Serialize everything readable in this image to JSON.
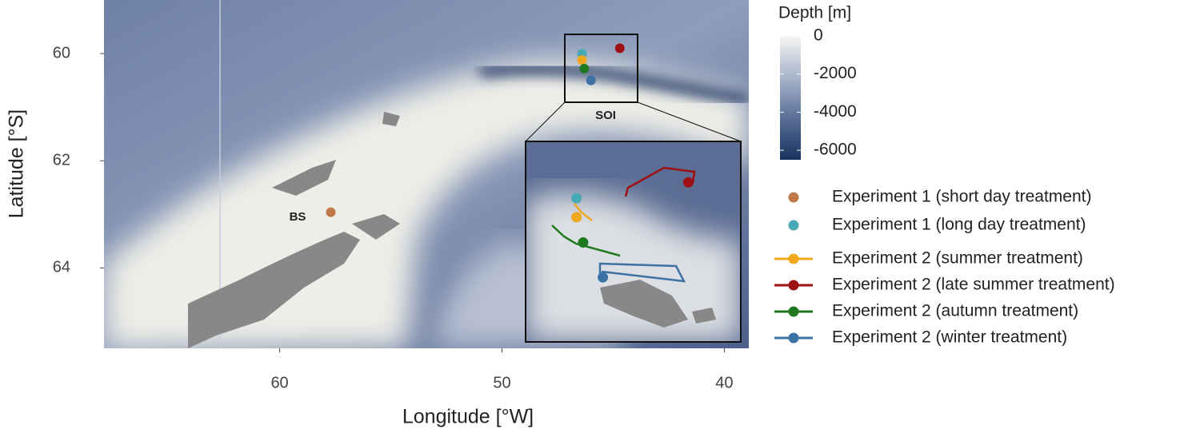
{
  "chart_data": {
    "type": "map",
    "x_label": "Longitude [°W]",
    "y_label": "Latitude [°S]",
    "xlim": [
      67.9,
      38.9
    ],
    "ylim": [
      59,
      65.5
    ],
    "xticks": [
      60,
      50,
      40
    ],
    "yticks": [
      60,
      62,
      64
    ],
    "colorbar": {
      "title": "Depth [m]",
      "lim": [
        -6500,
        0
      ],
      "ticks": [
        0,
        -2000,
        -4000,
        -6000
      ],
      "colors": [
        "#16325c",
        "#5a6f97",
        "#a8b4cb",
        "#f6f6f1"
      ]
    },
    "site_labels": [
      "BS",
      "SOI"
    ],
    "series": [
      {
        "name": "Experiment 1 (short day treatment)",
        "color": "#c0784a",
        "line": false,
        "x": [
          57.7
        ],
        "y": [
          62.96
        ]
      },
      {
        "name": "Experiment 1 (long day treatment)",
        "color": "#46a9b5",
        "line": false,
        "x": [
          46.4
        ],
        "y": [
          60.0
        ]
      },
      {
        "name": "Experiment 2 (summer treatment)",
        "color": "#f0a81c",
        "line": true,
        "x": [
          46.4
        ],
        "y": [
          60.12
        ]
      },
      {
        "name": "Experiment 2 (late summer treatment)",
        "color": "#9c1016",
        "line": true,
        "x": [
          44.7
        ],
        "y": [
          59.9
        ]
      },
      {
        "name": "Experiment 2 (autumn treatment)",
        "color": "#1f7a1f",
        "line": true,
        "x": [
          46.3
        ],
        "y": [
          60.28
        ]
      },
      {
        "name": "Experiment 2 (winter treatment)",
        "color": "#3d72a4",
        "line": true,
        "x": [
          46.0
        ],
        "y": [
          60.5
        ]
      }
    ]
  }
}
